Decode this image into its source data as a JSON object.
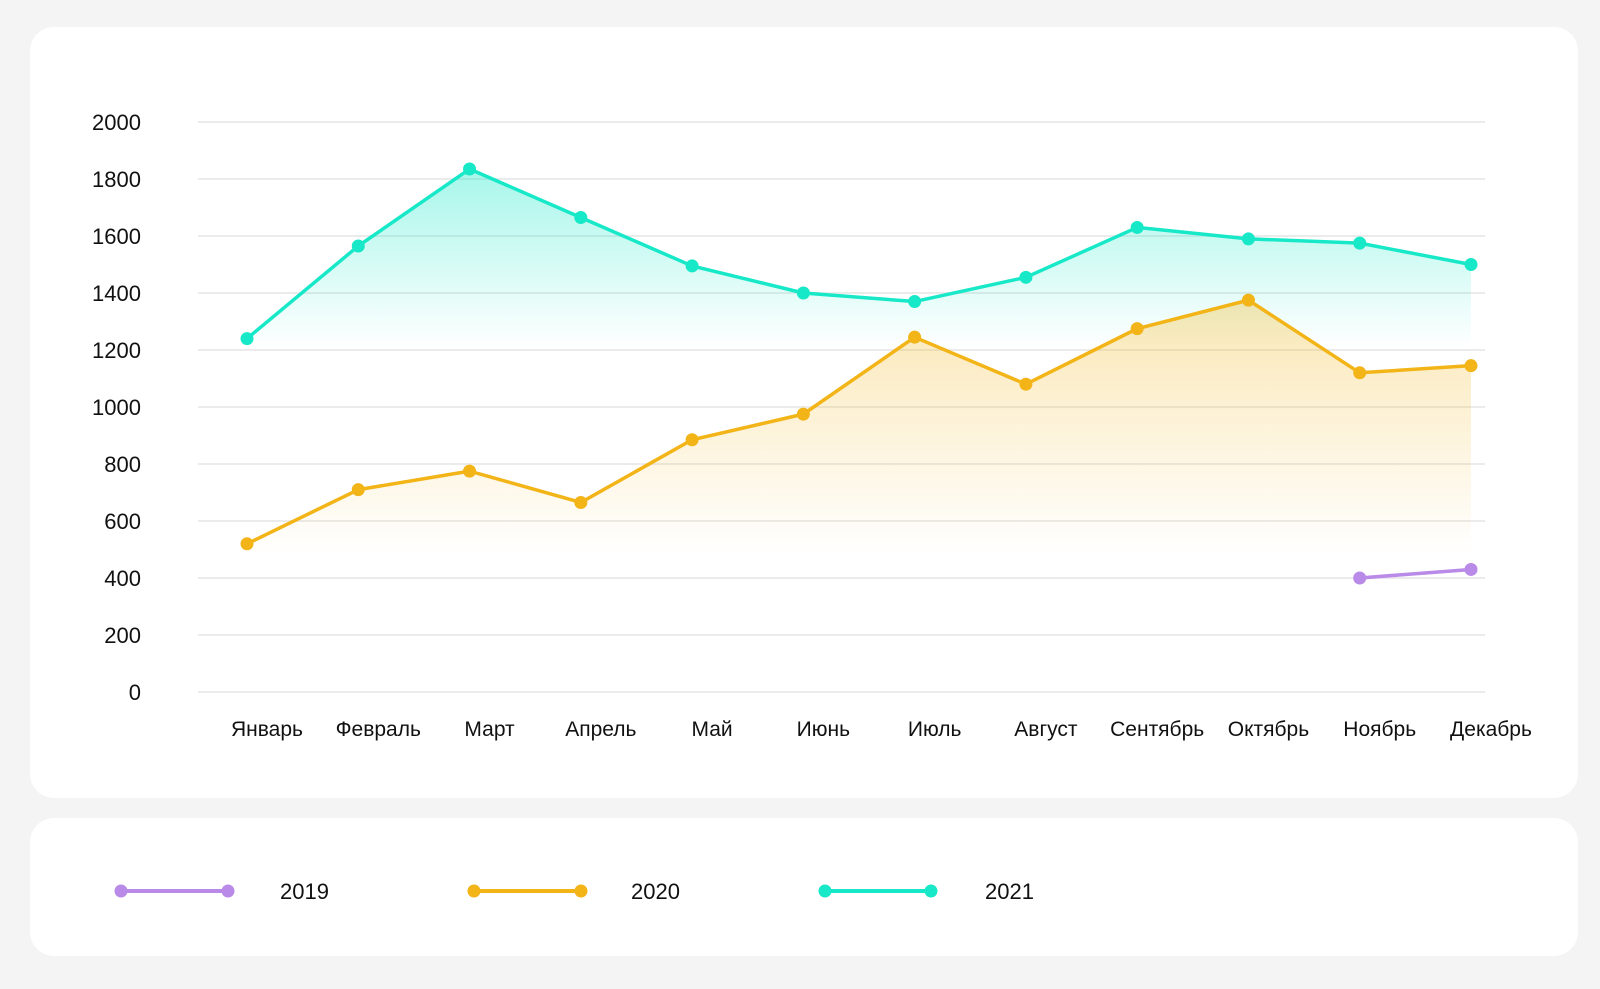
{
  "chart_data": {
    "type": "line",
    "categories": [
      "Январь",
      "Февраль",
      "Март",
      "Апрель",
      "Май",
      "Июнь",
      "Июль",
      "Август",
      "Сентябрь",
      "Октябрь",
      "Ноябрь",
      "Декабрь"
    ],
    "ylim": [
      0,
      2000
    ],
    "yticks": [
      "0",
      "200",
      "400",
      "600",
      "800",
      "1000",
      "1200",
      "1400",
      "1600",
      "1800",
      "2000"
    ],
    "grid": true,
    "series": [
      {
        "name": "2019",
        "color": "#b98ae8",
        "area": false,
        "values": [
          null,
          null,
          null,
          null,
          null,
          null,
          null,
          null,
          null,
          null,
          400,
          430
        ]
      },
      {
        "name": "2020",
        "color": "#f2b417",
        "area": true,
        "values": [
          520,
          710,
          775,
          665,
          885,
          975,
          1245,
          1080,
          1275,
          1375,
          1120,
          1145
        ]
      },
      {
        "name": "2021",
        "color": "#17e8c8",
        "area": true,
        "values": [
          1240,
          1565,
          1835,
          1665,
          1495,
          1400,
          1370,
          1455,
          1630,
          1590,
          1575,
          1500
        ]
      }
    ]
  }
}
